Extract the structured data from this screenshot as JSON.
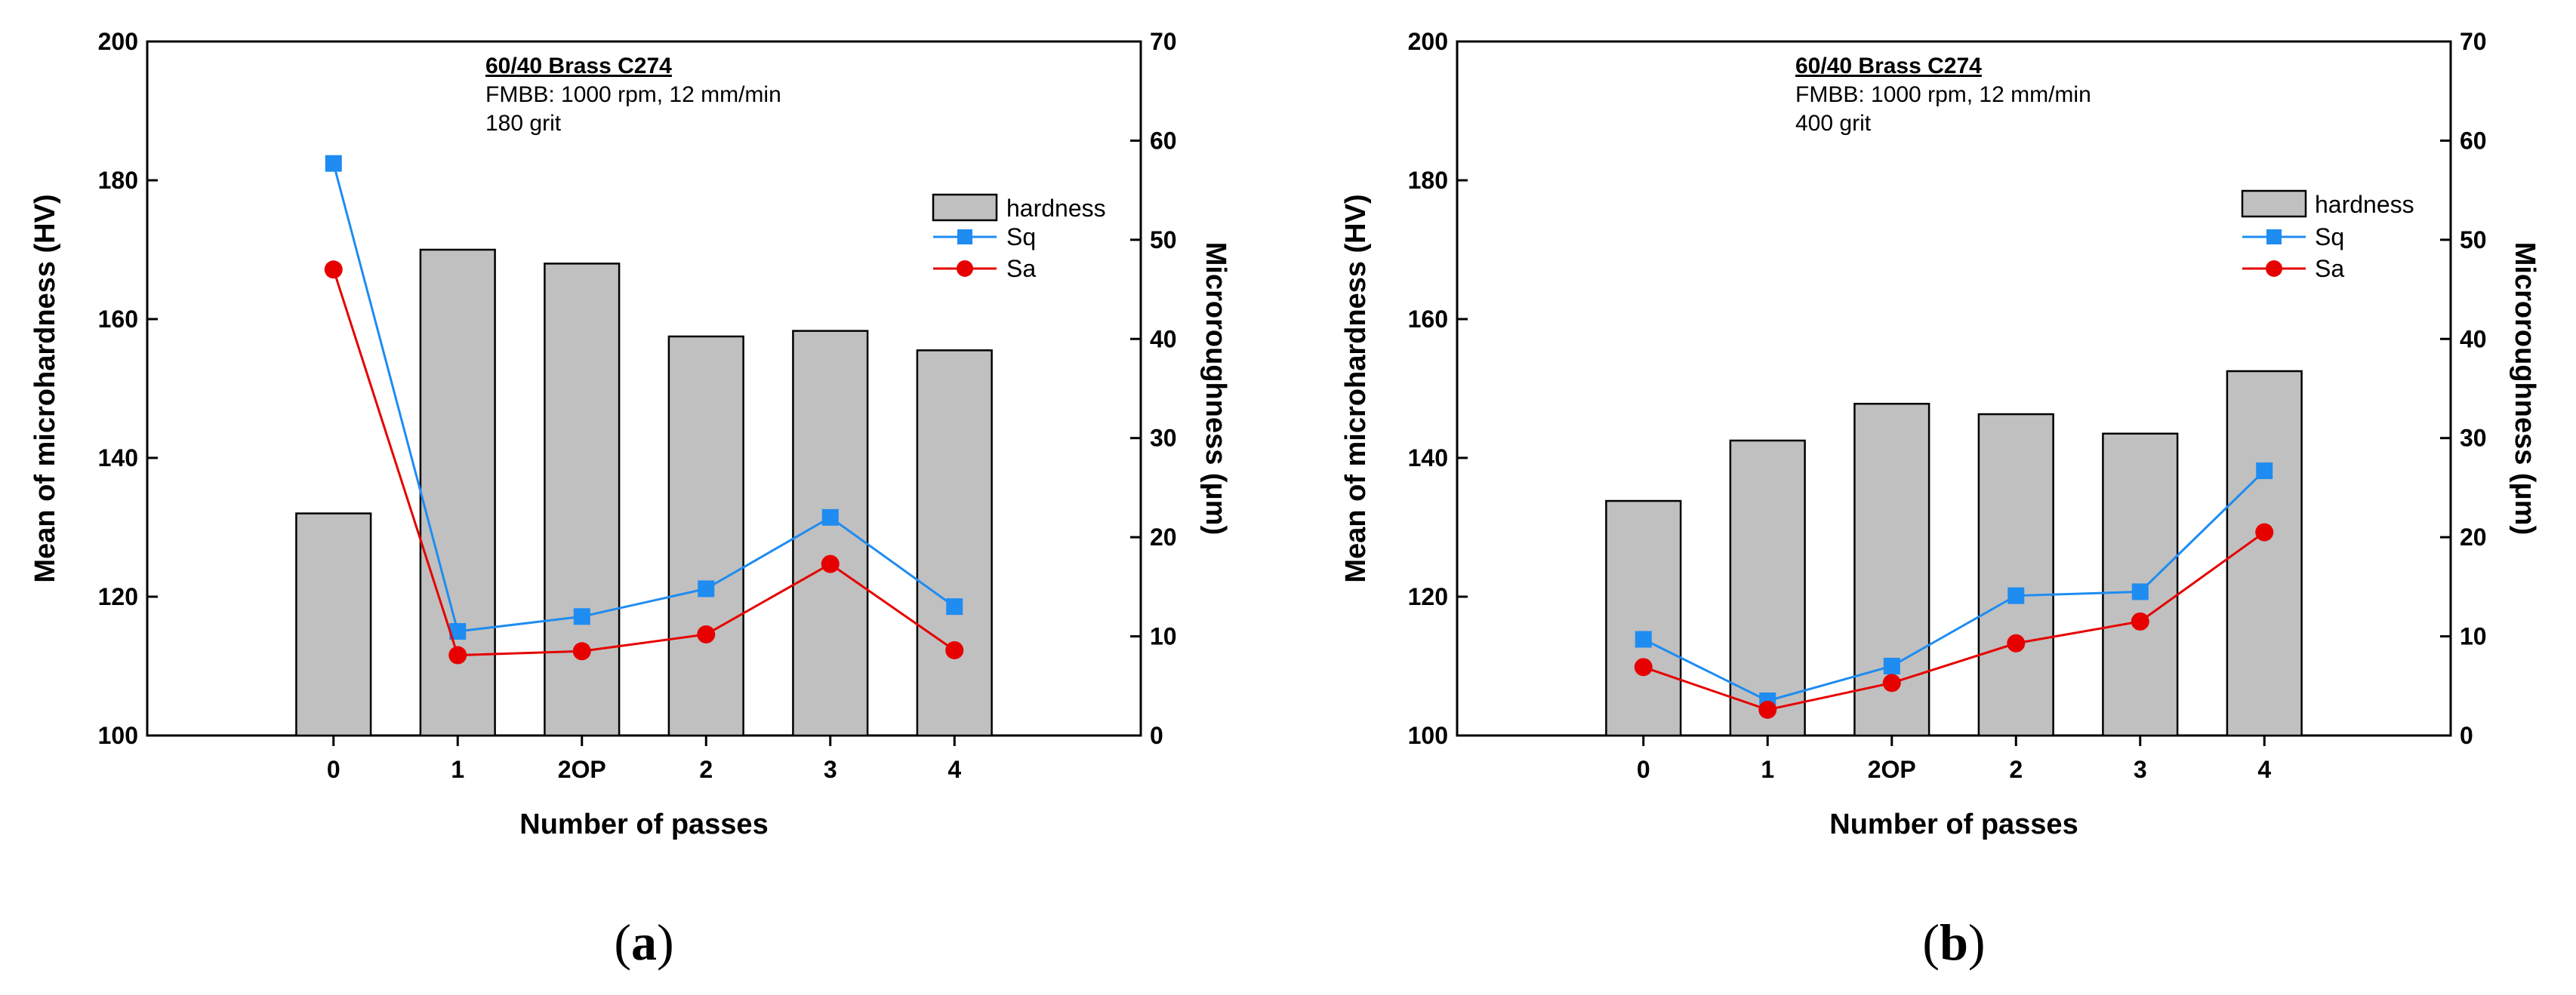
{
  "panels": [
    {
      "label": "a",
      "annotation": {
        "title": "60/40 Brass C274",
        "line1": "FMBB: 1000 rpm, 12 mm/min",
        "line2": "180 grit"
      },
      "legend": {
        "hardness": "hardness",
        "sq": "Sq",
        "sa": "Sa"
      },
      "chart_data": {
        "type": "bar",
        "categories": [
          "0",
          "1",
          "2OP",
          "2",
          "3",
          "4"
        ],
        "xlabel": "Number of passes",
        "ylabel": "Mean of microhardness (HV)",
        "y2label": "Microroughness (μm)",
        "ylim": [
          100,
          200
        ],
        "yticks": [
          100,
          120,
          140,
          160,
          180,
          200
        ],
        "y2lim": [
          0,
          70
        ],
        "y2ticks": [
          0,
          10,
          20,
          30,
          40,
          50,
          60,
          70
        ],
        "grid": false,
        "legend_position": "right",
        "series": [
          {
            "name": "hardness",
            "type": "bar",
            "axis": "left",
            "values": [
              132,
              170,
              168,
              157.5,
              158.3,
              155.5
            ]
          },
          {
            "name": "Sq",
            "type": "line",
            "axis": "right",
            "color": "#1e8cf0",
            "marker": "square",
            "values": [
              57.7,
              10.5,
              12,
              14.8,
              22,
              13
            ]
          },
          {
            "name": "Sa",
            "type": "line",
            "axis": "right",
            "color": "#e60000",
            "marker": "circle",
            "values": [
              47,
              8.1,
              8.5,
              10.2,
              17.3,
              8.6
            ]
          }
        ]
      }
    },
    {
      "label": "b",
      "annotation": {
        "title": "60/40 Brass C274",
        "line1": "FMBB: 1000 rpm, 12 mm/min",
        "line2": "400 grit"
      },
      "legend": {
        "hardness": "hardness",
        "sq": "Sq",
        "sa": "Sa"
      },
      "chart_data": {
        "type": "bar",
        "categories": [
          "0",
          "1",
          "2OP",
          "2",
          "3",
          "4"
        ],
        "xlabel": "Number of passes",
        "ylabel": "Mean of microhardness (HV)",
        "y2label": "Microroughness (μm)",
        "ylim": [
          100,
          200
        ],
        "yticks": [
          100,
          120,
          140,
          160,
          180,
          200
        ],
        "y2lim": [
          0,
          70
        ],
        "y2ticks": [
          0,
          10,
          20,
          30,
          40,
          50,
          60,
          70
        ],
        "grid": false,
        "legend_position": "right",
        "series": [
          {
            "name": "hardness",
            "type": "bar",
            "axis": "left",
            "values": [
              133.8,
              142.5,
              147.8,
              146.3,
              143.5,
              152.5
            ]
          },
          {
            "name": "Sq",
            "type": "line",
            "axis": "right",
            "color": "#1e8cf0",
            "marker": "square",
            "values": [
              9.7,
              3.5,
              7,
              14.1,
              14.5,
              26.7
            ]
          },
          {
            "name": "Sa",
            "type": "line",
            "axis": "right",
            "color": "#e60000",
            "marker": "circle",
            "values": [
              6.9,
              2.6,
              5.3,
              9.3,
              11.5,
              20.5
            ]
          }
        ]
      }
    }
  ]
}
